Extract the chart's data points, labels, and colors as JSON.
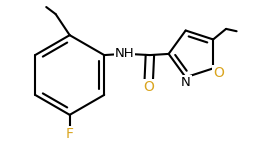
{
  "bg_color": "#ffffff",
  "bond_color": "#000000",
  "atom_colors": {
    "F": "#daa520",
    "O": "#daa520",
    "N": "#000000",
    "C": "#000000"
  },
  "font_size_atom": 9,
  "figsize": [
    2.8,
    1.5
  ],
  "dpi": 100
}
